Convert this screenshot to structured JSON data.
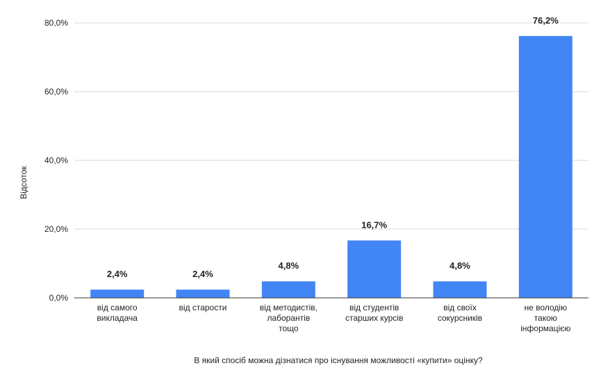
{
  "chart_data": {
    "type": "bar",
    "categories": [
      [
        "від самого",
        "викладача"
      ],
      [
        "від старости"
      ],
      [
        "від методистів,",
        "лаборантів",
        "тощо"
      ],
      [
        "від студентів",
        "старших курсів"
      ],
      [
        "від своїх",
        "сокурсників"
      ],
      [
        "не володію",
        "такою",
        "інформацією"
      ]
    ],
    "values": [
      2.4,
      2.4,
      4.8,
      16.7,
      4.8,
      76.2
    ],
    "value_labels": [
      "2,4%",
      "2,4%",
      "4,8%",
      "16,7%",
      "4,8%",
      "76,2%"
    ],
    "yticks": [
      0,
      20,
      40,
      60,
      80
    ],
    "ytick_labels": [
      "0,0%",
      "20,0%",
      "40,0%",
      "60,0%",
      "80,0%"
    ],
    "ylim": [
      0,
      80
    ],
    "ylabel": "Відсоток",
    "xlabel": "В який спосіб можна дізнатися про існування можливості «купити» оцінку?",
    "bar_color": "#4285f4",
    "grid": true
  }
}
